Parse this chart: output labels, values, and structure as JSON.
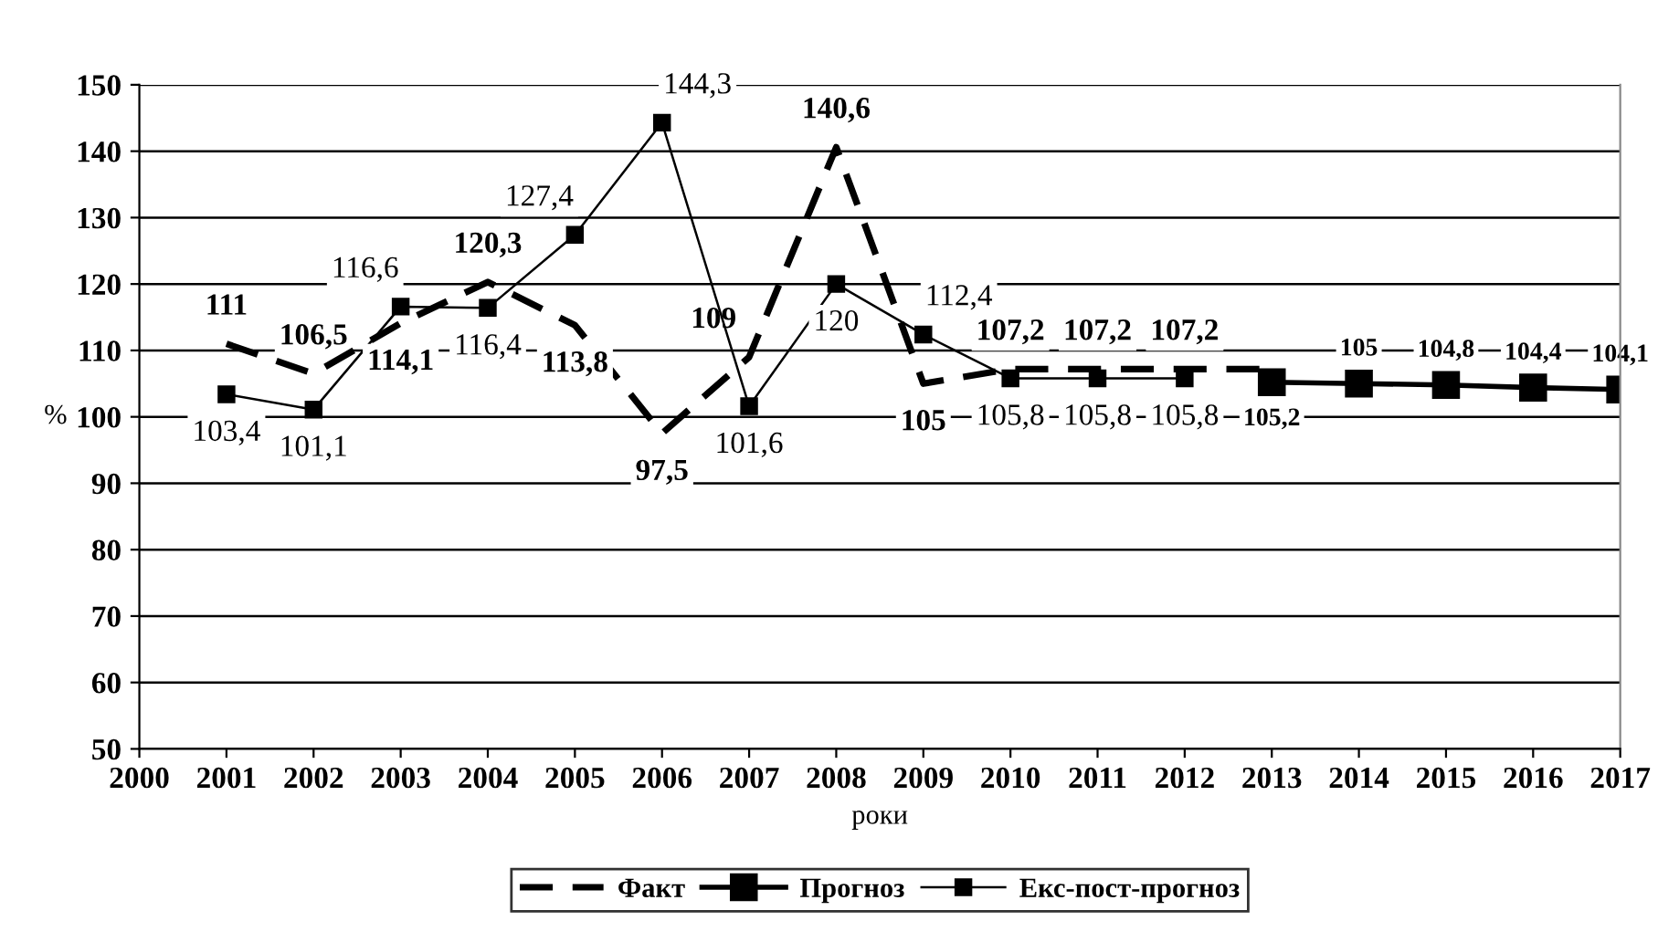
{
  "chart_data": {
    "type": "line",
    "xlabel": "роки",
    "ylabel": "%",
    "xlim": [
      2000,
      2017
    ],
    "xticks": [
      2000,
      2001,
      2002,
      2003,
      2004,
      2005,
      2006,
      2007,
      2008,
      2009,
      2010,
      2011,
      2012,
      2013,
      2014,
      2015,
      2016,
      2017
    ],
    "ylim": [
      50,
      150
    ],
    "yticks": [
      50,
      60,
      70,
      80,
      90,
      100,
      110,
      120,
      130,
      140,
      150
    ],
    "grid": "y",
    "legend": "bottom",
    "series": [
      {
        "name": "Факт",
        "color": "#000000",
        "line_style": "dashed",
        "marker": "none",
        "x": [
          2001,
          2002,
          2003,
          2004,
          2005,
          2006,
          2007,
          2008,
          2009,
          2010,
          2011,
          2012,
          2013
        ],
        "values": [
          111,
          106.5,
          114.1,
          120.3,
          113.8,
          97.5,
          109,
          140.6,
          105,
          107.2,
          107.2,
          107.2,
          107.2
        ],
        "value_labels": [
          "111",
          "106,5",
          "114,1",
          "120,3",
          "113,8",
          "97,5",
          "109",
          "140,6",
          "105",
          "107,2",
          "107,2",
          "107,2",
          null
        ]
      },
      {
        "name": "Прогноз",
        "color": "#000000",
        "line_style": "solid",
        "marker": "square",
        "x": [
          2013,
          2014,
          2015,
          2016,
          2017
        ],
        "values": [
          105.2,
          105,
          104.8,
          104.4,
          104.1
        ],
        "value_labels": [
          "105,2",
          "105",
          "104,8",
          "104,4",
          "104,1"
        ]
      },
      {
        "name": "Екс-пост-прогноз",
        "color": "#000000",
        "line_style": "solid",
        "marker": "square",
        "x": [
          2001,
          2002,
          2003,
          2004,
          2005,
          2006,
          2007,
          2008,
          2009,
          2010,
          2011,
          2012
        ],
        "values": [
          103.4,
          101.1,
          116.6,
          116.4,
          127.4,
          144.3,
          101.6,
          120,
          112.4,
          105.8,
          105.8,
          105.8
        ],
        "value_labels": [
          "103,4",
          "101,1",
          "116,6",
          "116,4",
          "127,4",
          "144,3",
          "101,6",
          "120",
          "112,4",
          "105,8",
          "105,8",
          "105,8"
        ]
      }
    ]
  }
}
